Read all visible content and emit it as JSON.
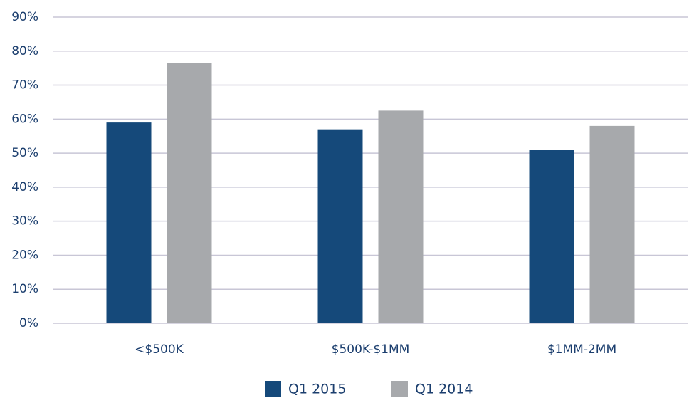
{
  "chart_data": {
    "type": "bar",
    "categories": [
      "<$500K",
      "$500K-$1MM",
      "$1MM-2MM"
    ],
    "series": [
      {
        "name": "Q1 2015",
        "color": "#15497a",
        "values": [
          59,
          57,
          51
        ]
      },
      {
        "name": "Q1 2014",
        "color": "#a7a9ac",
        "values": [
          76.5,
          62.5,
          58
        ]
      }
    ],
    "ylim": [
      0,
      90
    ],
    "yticks": [
      {
        "value": 0,
        "label": "0%"
      },
      {
        "value": 10,
        "label": "10%"
      },
      {
        "value": 20,
        "label": "20%"
      },
      {
        "value": 30,
        "label": "30%"
      },
      {
        "value": 40,
        "label": "40%"
      },
      {
        "value": 50,
        "label": "50%"
      },
      {
        "value": 60,
        "label": "60%"
      },
      {
        "value": 70,
        "label": "70%"
      },
      {
        "value": 80,
        "label": "80%"
      },
      {
        "value": 90,
        "label": "90%"
      }
    ],
    "grid": true,
    "legend": "bottom"
  }
}
